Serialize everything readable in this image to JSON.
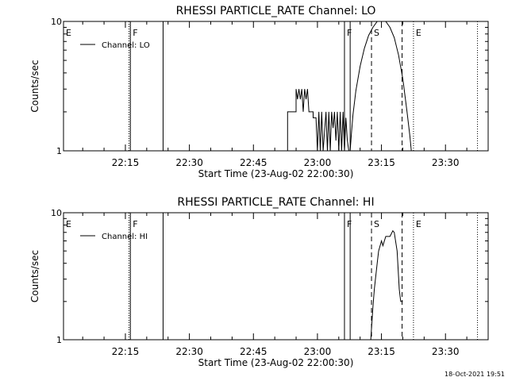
{
  "timestamp": "18-Oct-2021 19:51",
  "chart_data": [
    {
      "type": "line",
      "title": "RHESSI PARTICLE_RATE Channel: LO",
      "xlabel": "Start Time (23-Aug-02 22:00:30)",
      "ylabel": "Counts/sec",
      "y_scale": "log",
      "ylim": [
        1,
        10
      ],
      "y_ticks": [
        "1",
        "10"
      ],
      "xlim": [
        "22:00:30",
        "23:40:00"
      ],
      "x_ticks": [
        "22:15",
        "22:30",
        "22:45",
        "23:00",
        "23:15",
        "23:30"
      ],
      "grid": false,
      "legend_position": "top-left",
      "series": [
        {
          "name": "Channel: LO",
          "x": [
            "22:53:00",
            "22:53:00",
            "22:54:00",
            "22:55:00",
            "22:55:00",
            "22:55:20",
            "22:55:40",
            "22:56:00",
            "22:56:20",
            "22:56:40",
            "22:57:00",
            "22:57:20",
            "22:57:40",
            "22:58:00",
            "22:58:00",
            "22:59:00",
            "22:59:00",
            "22:59:40",
            "23:00:00",
            "23:00:20",
            "23:00:40",
            "23:01:00",
            "23:01:20",
            "23:02:00",
            "23:02:20",
            "23:02:40",
            "23:03:00",
            "23:03:20",
            "23:03:40",
            "23:04:00",
            "23:04:20",
            "23:04:40",
            "23:05:00",
            "23:05:20",
            "23:05:40",
            "23:06:00",
            "23:06:20",
            "23:06:40",
            "23:07:00",
            "23:07:20",
            "23:07:40",
            "23:08:00",
            "23:08:20",
            "23:09:00",
            "23:10:00",
            "23:11:00",
            "23:12:00",
            "23:13:00",
            "23:14:00",
            "23:15:00",
            "23:16:00",
            "23:17:00",
            "23:18:00",
            "23:19:00",
            "23:20:00",
            "23:21:00",
            "23:21:40",
            "23:22:00"
          ],
          "y": [
            1,
            2,
            2,
            2,
            3,
            2.5,
            3,
            2.5,
            3,
            2,
            3,
            2.5,
            3,
            2,
            2,
            2,
            1.8,
            1.8,
            1,
            2,
            1,
            2,
            1,
            2,
            1,
            2,
            1,
            2,
            1.5,
            2,
            1.2,
            2,
            1,
            2,
            1,
            2,
            1,
            1.8,
            1.2,
            1,
            1,
            1.4,
            1.9,
            2.9,
            4.5,
            6.2,
            7.8,
            9,
            10,
            10,
            10,
            9,
            7.5,
            5.5,
            3.6,
            2,
            1.3,
            1
          ]
        }
      ],
      "vlines": [
        {
          "label": "E",
          "x": "22:00:30",
          "style": "dotted"
        },
        {
          "label": "",
          "x": "22:15:50",
          "style": "dotted"
        },
        {
          "label": "F",
          "x": "22:16:10",
          "style": "solid"
        },
        {
          "label": "",
          "x": "22:23:50",
          "style": "solid"
        },
        {
          "label": "F",
          "x": "23:06:20",
          "style": "solid"
        },
        {
          "label": "",
          "x": "23:07:40",
          "style": "solid"
        },
        {
          "label": "S",
          "x": "23:12:40",
          "style": "dashed"
        },
        {
          "label": "",
          "x": "23:19:50",
          "style": "dashed"
        },
        {
          "label": "E",
          "x": "23:22:30",
          "style": "dotted"
        },
        {
          "label": "",
          "x": "23:37:30",
          "style": "dotted"
        }
      ]
    },
    {
      "type": "line",
      "title": "RHESSI PARTICLE_RATE Channel: HI",
      "xlabel": "Start Time (23-Aug-02 22:00:30)",
      "ylabel": "Counts/sec",
      "y_scale": "log",
      "ylim": [
        1,
        10
      ],
      "y_ticks": [
        "1",
        "10"
      ],
      "xlim": [
        "22:00:30",
        "23:40:00"
      ],
      "x_ticks": [
        "22:15",
        "22:30",
        "22:45",
        "23:00",
        "23:15",
        "23:30"
      ],
      "grid": false,
      "legend_position": "top-left",
      "series": [
        {
          "name": "Channel: HI",
          "x": [
            "23:12:30",
            "23:13:00",
            "23:13:20",
            "23:14:00",
            "23:14:20",
            "23:15:00",
            "23:15:20",
            "23:16:00",
            "23:16:40",
            "23:17:00",
            "23:17:40",
            "23:18:00",
            "23:18:40",
            "23:19:10",
            "23:19:30",
            "23:19:40",
            "23:20:00"
          ],
          "y": [
            1,
            1.8,
            2.5,
            4,
            5,
            6,
            5.5,
            6.5,
            6.5,
            6.5,
            7.2,
            7,
            5,
            2.5,
            2,
            2,
            2
          ]
        }
      ],
      "vlines": [
        {
          "label": "E",
          "x": "22:00:30",
          "style": "dotted"
        },
        {
          "label": "",
          "x": "22:15:50",
          "style": "dotted"
        },
        {
          "label": "F",
          "x": "22:16:10",
          "style": "solid"
        },
        {
          "label": "",
          "x": "22:23:50",
          "style": "solid"
        },
        {
          "label": "F",
          "x": "23:06:20",
          "style": "solid"
        },
        {
          "label": "",
          "x": "23:07:40",
          "style": "solid"
        },
        {
          "label": "S",
          "x": "23:12:40",
          "style": "dashed"
        },
        {
          "label": "",
          "x": "23:19:50",
          "style": "dashed"
        },
        {
          "label": "E",
          "x": "23:22:30",
          "style": "dotted"
        },
        {
          "label": "",
          "x": "23:37:30",
          "style": "dotted"
        }
      ]
    }
  ]
}
